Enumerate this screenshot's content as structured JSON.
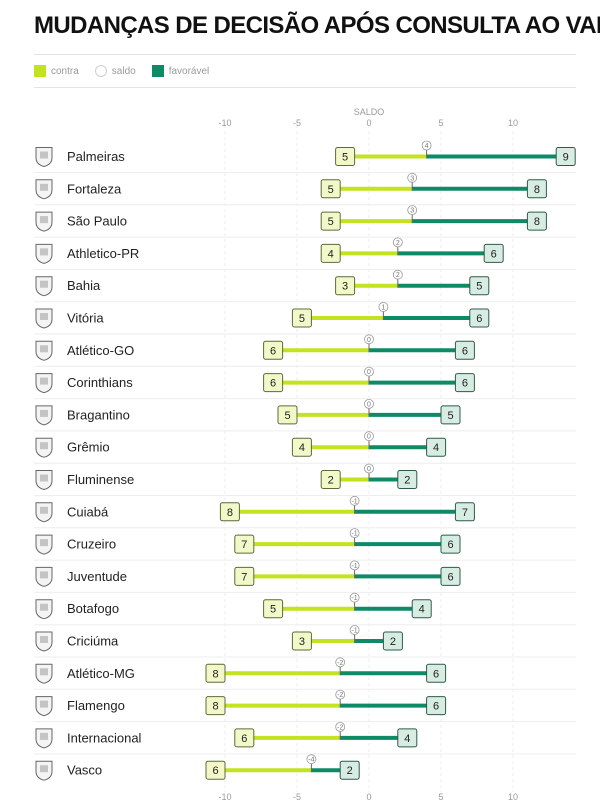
{
  "title": "MUDANÇAS DE DECISÃO APÓS CONSULTA AO VAR",
  "legend": {
    "contra": "contra",
    "saldo": "saldo",
    "favoravel": "favorável"
  },
  "colors": {
    "contra": "#c3e21f",
    "favoravel": "#0e8a67",
    "box_contra": "#f3f8c8",
    "box_fav": "#d7ede3"
  },
  "icons": [
    "palmeiras-crest-icon",
    "fortaleza-crest-icon",
    "sao-paulo-crest-icon",
    "athletico-pr-crest-icon",
    "bahia-crest-icon",
    "vitoria-crest-icon",
    "atletico-go-crest-icon",
    "corinthians-crest-icon",
    "bragantino-crest-icon",
    "gremio-crest-icon",
    "fluminense-crest-icon",
    "cuiaba-crest-icon",
    "cruzeiro-crest-icon",
    "juventude-crest-icon",
    "botafogo-crest-icon",
    "criciuma-crest-icon",
    "atletico-mg-crest-icon",
    "flamengo-crest-icon",
    "internacional-crest-icon",
    "vasco-crest-icon"
  ],
  "chart_data": {
    "type": "bar",
    "axis_title": "SALDO",
    "xlim": [
      -11,
      14
    ],
    "x_ticks": [
      -10,
      -5,
      0,
      5,
      10
    ],
    "grid": true,
    "categories": [
      "Palmeiras",
      "Fortaleza",
      "São Paulo",
      "Athletico-PR",
      "Bahia",
      "Vitória",
      "Atlético-GO",
      "Corinthians",
      "Bragantino",
      "Grêmio",
      "Fluminense",
      "Cuiabá",
      "Cruzeiro",
      "Juventude",
      "Botafogo",
      "Criciúma",
      "Atlético-MG",
      "Flamengo",
      "Internacional",
      "Vasco"
    ],
    "series": [
      {
        "name": "contra",
        "values": [
          5,
          5,
          5,
          4,
          3,
          5,
          6,
          6,
          5,
          4,
          2,
          8,
          7,
          7,
          5,
          3,
          8,
          8,
          6,
          6
        ]
      },
      {
        "name": "favorável",
        "values": [
          9,
          8,
          8,
          6,
          5,
          6,
          6,
          6,
          5,
          4,
          2,
          7,
          6,
          6,
          4,
          2,
          6,
          6,
          4,
          2
        ]
      },
      {
        "name": "saldo",
        "values": [
          4,
          3,
          3,
          2,
          2,
          1,
          0,
          0,
          0,
          0,
          0,
          -1,
          -1,
          -1,
          -1,
          -1,
          -2,
          -2,
          -2,
          -4
        ]
      }
    ]
  }
}
